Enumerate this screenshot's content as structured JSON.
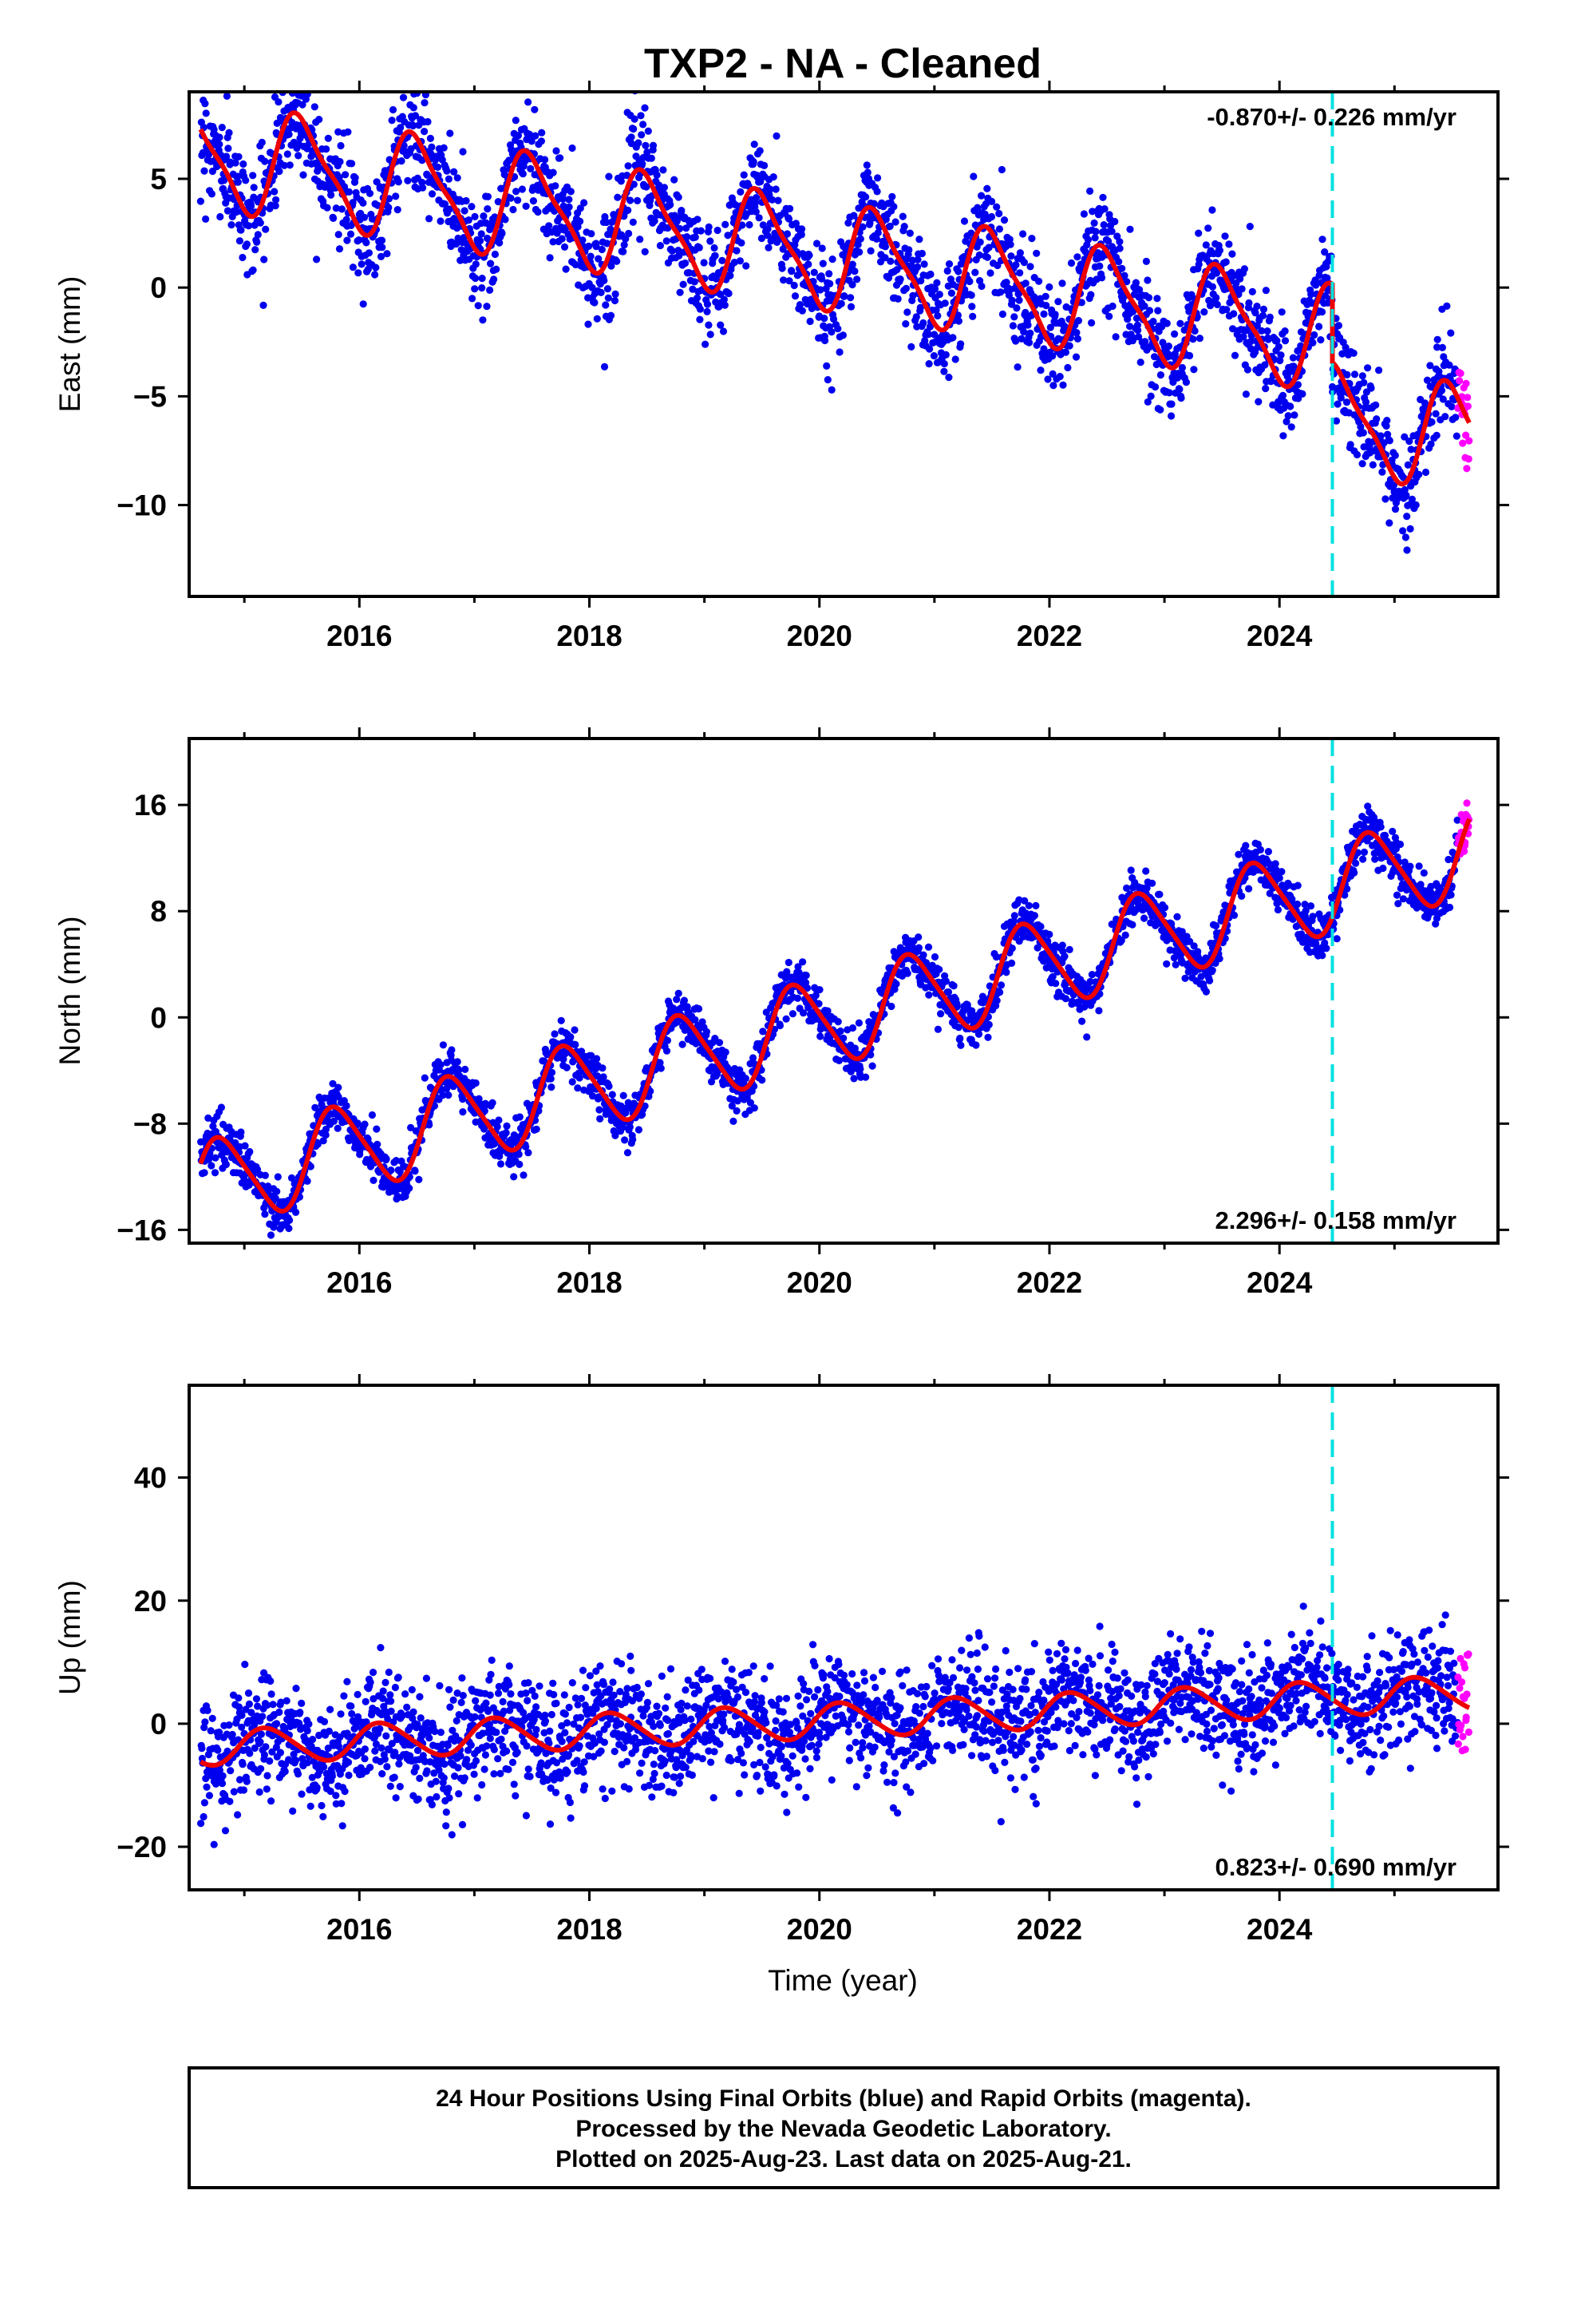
{
  "title": "TXP2  - NA - Cleaned",
  "xlabel": "Time (year)",
  "footer": [
    "24 Hour Positions Using Final Orbits (blue) and Rapid Orbits (magenta).",
    "Processed by the Nevada Geodetic Laboratory.",
    "Plotted on 2025-Aug-23. Last data on 2025-Aug-21."
  ],
  "colors": {
    "final": "#0000ee",
    "rapid": "#ff00ff",
    "model": "#ee0000",
    "event": "#00e0e0",
    "frame": "#000000"
  },
  "chart_data": [
    {
      "type": "scatter",
      "id": "east",
      "ylabel": "East (mm)",
      "rate_text": "-0.870+/- 0.226 mm/yr",
      "xlim": [
        2014.52,
        2025.9
      ],
      "ylim": [
        -14.2,
        9
      ],
      "x_ticks": [
        "2016",
        "2018",
        "2020",
        "2022",
        "2024"
      ],
      "y_ticks": [
        "5",
        "0",
        "−5",
        "−10"
      ],
      "y_tick_values": [
        5,
        0,
        -5,
        -10
      ],
      "event_x": 2024.46,
      "rapid_start": 2025.55,
      "model": {
        "start_value": 6.2,
        "rate": -0.87,
        "amp1": 2.3,
        "phase1": 0.25,
        "amp2": 0.6,
        "offset": -3.6,
        "offset_at": 2024.46
      },
      "series": [
        {
          "name": "Final Orbits (blue)",
          "x_range": [
            2014.62,
            2025.55
          ],
          "scatter_sd": 1.2
        },
        {
          "name": "Rapid Orbits (magenta)",
          "x_range": [
            2025.55,
            2025.65
          ],
          "scatter_sd": 1.0
        }
      ]
    },
    {
      "type": "scatter",
      "id": "north",
      "ylabel": "North (mm)",
      "rate_text": "2.296+/- 0.158 mm/yr",
      "xlim": [
        2014.52,
        2025.9
      ],
      "ylim": [
        -17,
        21
      ],
      "x_ticks": [
        "2016",
        "2018",
        "2020",
        "2022",
        "2024"
      ],
      "y_ticks": [
        "16",
        "8",
        "0",
        "−8",
        "−16"
      ],
      "y_tick_values": [
        16,
        8,
        0,
        -8,
        -16
      ],
      "event_x": 2024.46,
      "rapid_start": 2025.55,
      "model": {
        "start_value": -12.8,
        "rate": 2.296,
        "amp1": 3.3,
        "phase1": 0.55,
        "amp2": 0.5,
        "offset": 0,
        "offset_at": 2024.46
      },
      "series": [
        {
          "name": "Final Orbits (blue)",
          "x_range": [
            2014.62,
            2025.55
          ],
          "scatter_sd": 0.9
        },
        {
          "name": "Rapid Orbits (magenta)",
          "x_range": [
            2025.55,
            2025.65
          ],
          "scatter_sd": 0.8
        }
      ]
    },
    {
      "type": "scatter",
      "id": "up",
      "ylabel": "Up (mm)",
      "rate_text": "0.823+/- 0.690 mm/yr",
      "xlim": [
        2014.52,
        2025.9
      ],
      "ylim": [
        -27,
        55
      ],
      "x_ticks": [
        "2016",
        "2018",
        "2020",
        "2022",
        "2024"
      ],
      "y_ticks": [
        "40",
        "20",
        "0",
        "−20"
      ],
      "y_tick_values": [
        40,
        20,
        0,
        -20
      ],
      "event_x": 2024.46,
      "rapid_start": 2025.55,
      "model": {
        "start_value": -4,
        "rate": 0.823,
        "amp1": 2.8,
        "phase1": 0.95,
        "amp2": 0.3,
        "offset": 0,
        "offset_at": 2024.46
      },
      "series": [
        {
          "name": "Final Orbits (blue)",
          "x_range": [
            2014.62,
            2025.55
          ],
          "scatter_sd": 4.5
        },
        {
          "name": "Rapid Orbits (magenta)",
          "x_range": [
            2025.55,
            2025.65
          ],
          "scatter_sd": 5.0
        }
      ]
    }
  ]
}
